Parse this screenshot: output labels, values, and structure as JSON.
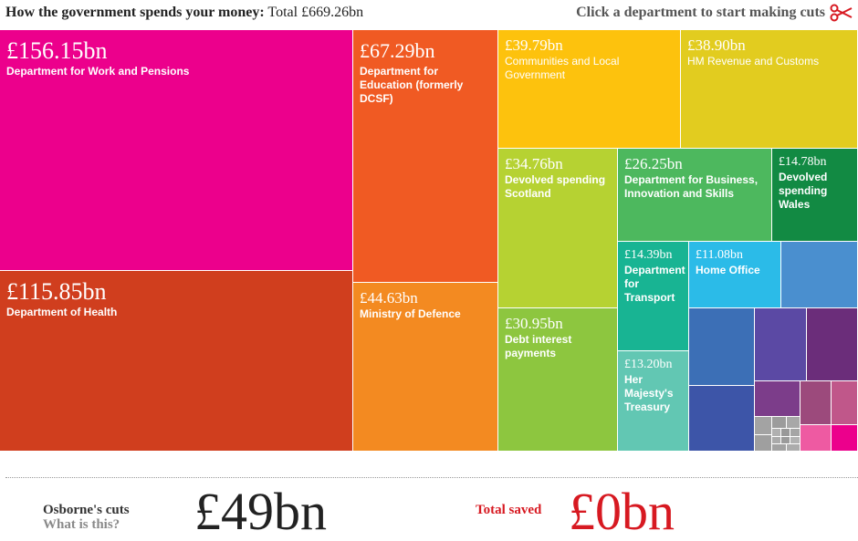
{
  "header": {
    "title_bold": "How the government spends your money:",
    "title_total": "Total £669.26bn",
    "cta": "Click a department to start making cuts",
    "cta_icon": "scissors-icon"
  },
  "departments": [
    {
      "amount": "£156.15bn",
      "name": "Department for Work and Pensions",
      "color": "#ec008c"
    },
    {
      "amount": "£115.85bn",
      "name": "Department of Health",
      "color": "#d03e1e"
    },
    {
      "amount": "£67.29bn",
      "name": "Department for Education (formerly DCSF)",
      "color": "#f05a23"
    },
    {
      "amount": "£44.63bn",
      "name": "Ministry of Defence",
      "color": "#f38a21"
    },
    {
      "amount": "£39.79bn",
      "name": "Communities and Local Government",
      "color": "#fdc20d"
    },
    {
      "amount": "£38.90bn",
      "name": "HM Revenue and Customs",
      "color": "#e2cc1f"
    },
    {
      "amount": "£34.76bn",
      "name": "Devolved spending Scotland",
      "color": "#b6d232"
    },
    {
      "amount": "£26.25bn",
      "name": "Department for Business, Innovation and Skills",
      "color": "#4db85e"
    },
    {
      "amount": "£14.78bn",
      "name": "Devolved spending Wales",
      "color": "#128a43"
    },
    {
      "amount": "£30.95bn",
      "name": "Debt interest payments",
      "color": "#8dc63f"
    },
    {
      "amount": "£14.39bn",
      "name": "Department for Transport",
      "color": "#18b493"
    },
    {
      "amount": "£11.08bn",
      "name": "Home Office",
      "color": "#2bbbe8"
    },
    {
      "amount": "£13.20bn",
      "name": "Her Majesty's Treasury",
      "color": "#62c7b3"
    }
  ],
  "unlabeled_colors": [
    "#4a8fcf",
    "#3c6fb6",
    "#3d55a8",
    "#5b49a4",
    "#6b2d7a",
    "#7c3d8a",
    "#9c4a7c",
    "#c0578a",
    "#ee5aa2",
    "#ec008c",
    "#a0a0a0"
  ],
  "footer": {
    "cuts_label": "Osborne's cuts",
    "cuts_link": "What is this?",
    "cuts_value": "£49bn",
    "saved_label": "Total saved",
    "saved_value": "£0bn"
  }
}
